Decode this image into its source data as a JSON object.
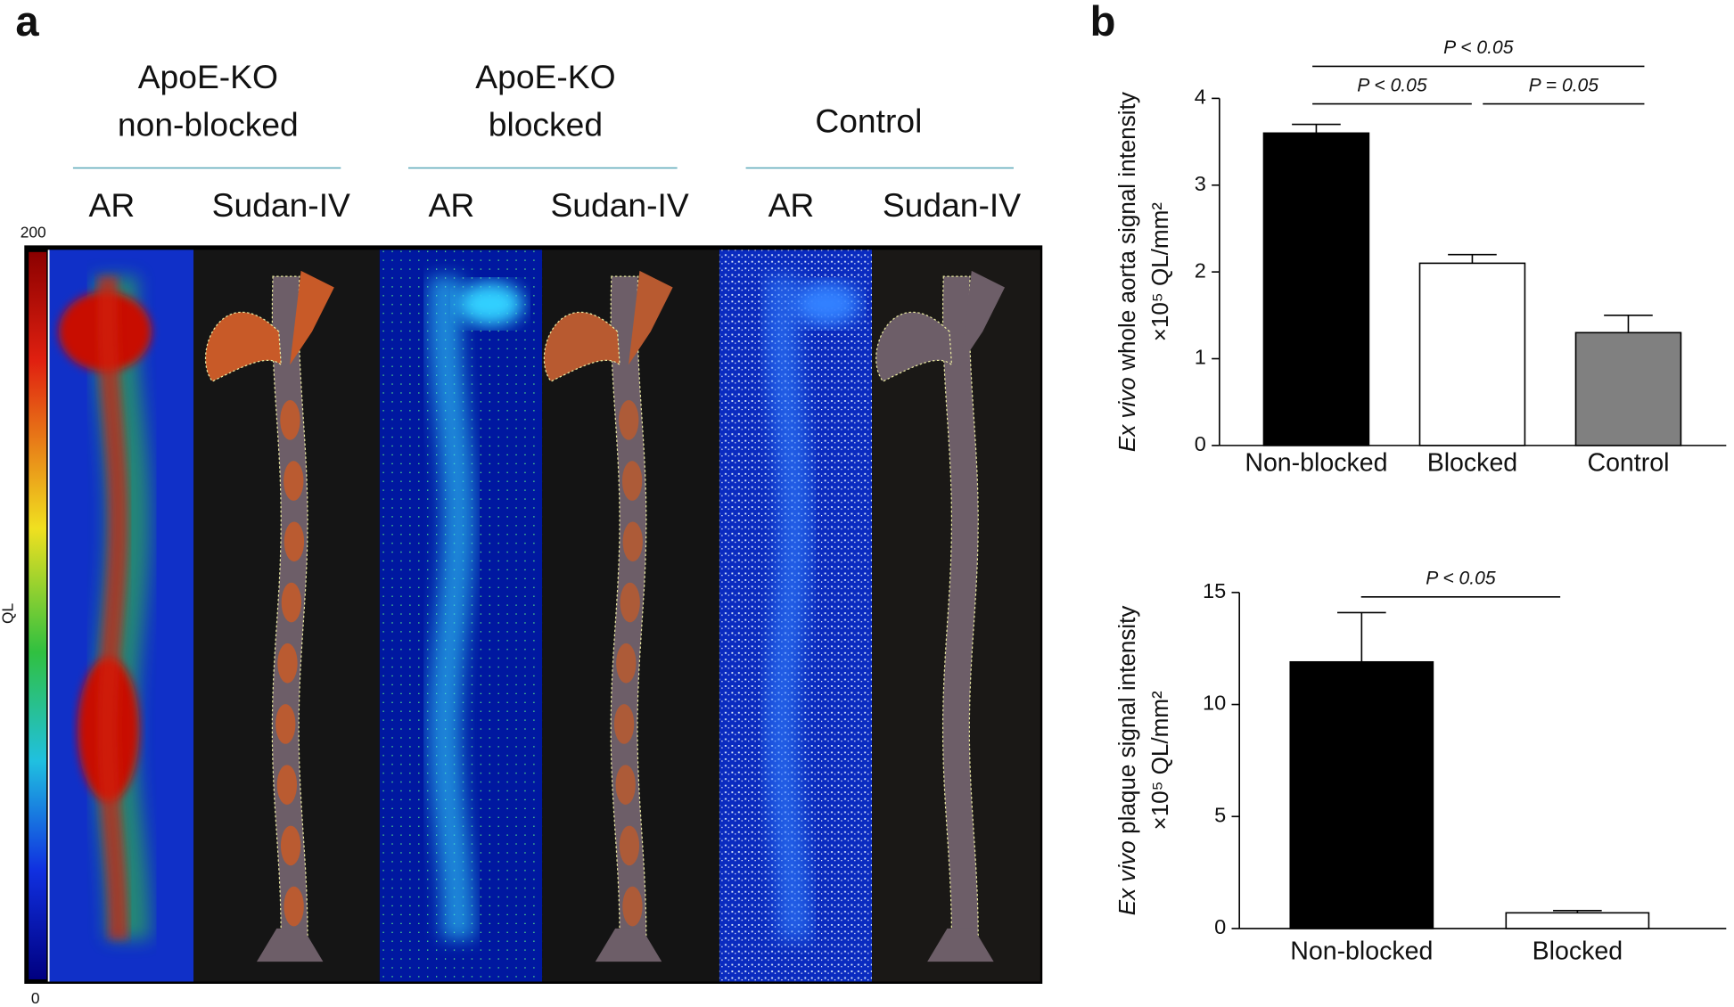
{
  "panel_a": {
    "label": "a",
    "groups": [
      {
        "title": [
          "ApoE-KO",
          "non-blocked"
        ]
      },
      {
        "title": [
          "ApoE-KO",
          "blocked"
        ]
      },
      {
        "title": [
          "Control"
        ]
      }
    ],
    "columns": [
      "AR",
      "Sudan-IV",
      "AR",
      "Sudan-IV",
      "AR",
      "Sudan-IV"
    ],
    "colorbar": {
      "label": "QL",
      "max": 200,
      "min": 0
    }
  },
  "panel_b": {
    "label": "b"
  },
  "chart_data": [
    {
      "type": "bar",
      "y_label_italic": "Ex vivo",
      "y_label": "whole aorta signal intensity",
      "y_unit": "×10⁵ QL/mm²",
      "categories": [
        "Non-blocked",
        "Blocked",
        "Control"
      ],
      "values": [
        3.6,
        2.1,
        1.3
      ],
      "errors": [
        0.1,
        0.1,
        0.2
      ],
      "colors": [
        "#000000",
        "#ffffff",
        "#808080"
      ],
      "ylim": [
        0,
        4
      ],
      "yticks": [
        0,
        1,
        2,
        3,
        4
      ],
      "annotations": [
        "P < 0.05",
        "P < 0.05",
        "P = 0.05"
      ]
    },
    {
      "type": "bar",
      "y_label_italic": "Ex vivo",
      "y_label": "plaque signal intensity",
      "y_unit": "×10⁵ QL/mm²",
      "categories": [
        "Non-blocked",
        "Blocked"
      ],
      "values": [
        11.9,
        0.7
      ],
      "errors": [
        2.2,
        0.1
      ],
      "colors": [
        "#000000",
        "#ffffff"
      ],
      "ylim": [
        0,
        15
      ],
      "yticks": [
        0,
        5,
        10,
        15
      ],
      "annotations": [
        "P < 0.05"
      ]
    }
  ]
}
